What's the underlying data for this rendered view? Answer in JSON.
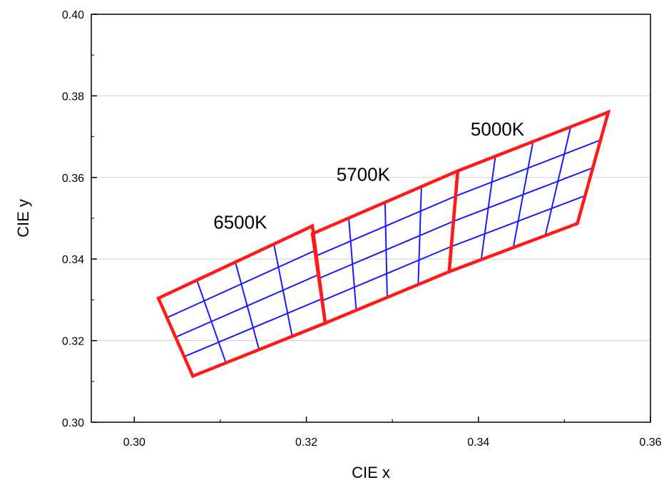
{
  "chart_data": {
    "type": "scatter",
    "title": "",
    "xlabel": "CIE x",
    "ylabel": "CIE y",
    "xlim": [
      0.295,
      0.36
    ],
    "ylim": [
      0.3,
      0.4
    ],
    "x_ticks": [
      "0.30",
      "0.32",
      "0.34",
      "0.36"
    ],
    "y_ticks": [
      "0.30",
      "0.32",
      "0.34",
      "0.36",
      "0.38",
      "0.40"
    ],
    "grid": "horizontal",
    "colors": {
      "outline": "#ff1a1a",
      "grid_lines": "#1a1aff",
      "gridline": "#d0d0d0"
    },
    "regions": [
      {
        "label": "6500K",
        "label_anchor": [
          0.3092,
          0.3475
        ],
        "corners": [
          [
            0.3028,
            0.3304
          ],
          [
            0.3207,
            0.3481
          ],
          [
            0.3222,
            0.3243
          ],
          [
            0.3068,
            0.3113
          ]
        ],
        "divisions": 4
      },
      {
        "label": "5700K",
        "label_anchor": [
          0.3235,
          0.3592
        ],
        "corners": [
          [
            0.3207,
            0.3462
          ],
          [
            0.3376,
            0.3616
          ],
          [
            0.3366,
            0.3369
          ],
          [
            0.3222,
            0.3243
          ]
        ],
        "divisions": 4
      },
      {
        "label": "5000K",
        "label_anchor": [
          0.3391,
          0.3703
        ],
        "corners": [
          [
            0.3376,
            0.3616
          ],
          [
            0.3551,
            0.376
          ],
          [
            0.3515,
            0.3487
          ],
          [
            0.3366,
            0.3369
          ]
        ],
        "divisions": 4
      }
    ]
  }
}
